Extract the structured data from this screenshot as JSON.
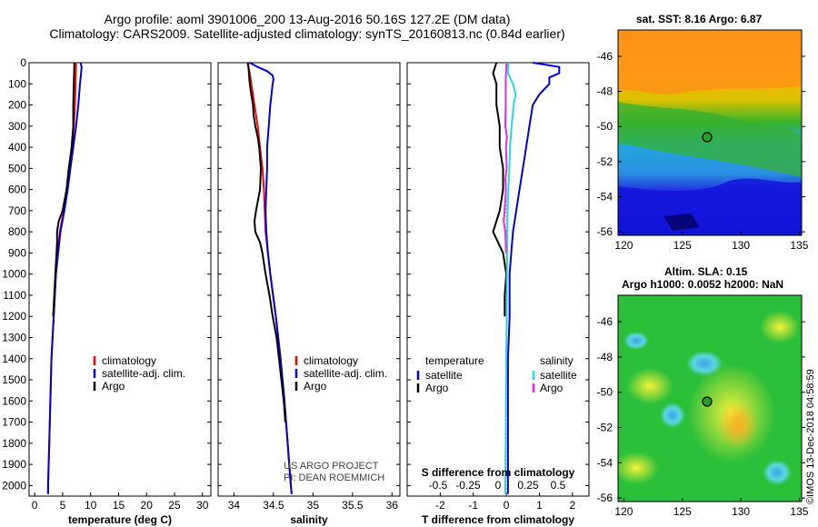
{
  "header": {
    "title_line1": "Argo profile: aoml 3901006_200 13-Aug-2016 50.16S 127.2E (DM data)",
    "title_line2": "Climatology: CARS2009. Satellite-adjusted climatology: synTS_20160813.nc (0.84d earlier)"
  },
  "map_sst": {
    "title": "sat. SST: 8.16 Argo: 6.87"
  },
  "map_sla": {
    "title_line1": "Altim. SLA: 0.15",
    "title_line2": "Argo h1000: 0.0052 h2000: NaN"
  },
  "credit": {
    "line1": "US ARGO PROJECT",
    "line2": "PI: DEAN ROEMMICH"
  },
  "stamp": "©IMOS 13-Dec-2018 04:58:59",
  "colors": {
    "climatology": "#ff0000",
    "satellite": "#0000dd",
    "argo": "#000000",
    "sat_salinity": "#22dddd",
    "argo_salinity_diff": "#ee22ee"
  },
  "chart_data": [
    {
      "type": "line",
      "xlabel": "temperature (deg C)",
      "ylim": [
        2050,
        0
      ],
      "yticks": [
        0,
        100,
        200,
        300,
        400,
        500,
        600,
        700,
        800,
        900,
        1000,
        1100,
        1200,
        1300,
        1400,
        1500,
        1600,
        1700,
        1800,
        1900,
        2000
      ],
      "xlim": [
        -1,
        31.5
      ],
      "xticks": [
        0,
        5,
        10,
        15,
        20,
        25,
        30
      ],
      "legend": [
        "climatology",
        "satellite-adj. clim.",
        "Argo"
      ],
      "series": [
        {
          "name": "climatology",
          "color": "#ff0000",
          "depth": [
            0,
            100,
            200,
            300,
            400,
            500,
            600,
            700,
            800,
            900,
            1000,
            1200,
            1400,
            1600,
            1800,
            2000,
            2040
          ],
          "values": [
            7.4,
            7.3,
            7.2,
            7.0,
            6.7,
            6.3,
            5.8,
            5.2,
            4.5,
            4.1,
            3.8,
            3.4,
            3.0,
            2.8,
            2.6,
            2.4,
            2.4
          ]
        },
        {
          "name": "satellite-adj. clim.",
          "color": "#0000dd",
          "depth": [
            0,
            20,
            50,
            100,
            200,
            300,
            400,
            500,
            600,
            700,
            800,
            900,
            1000,
            1200,
            1400,
            1600,
            1800,
            2000,
            2040
          ],
          "values": [
            8.2,
            8.4,
            8.3,
            8.1,
            7.8,
            7.4,
            6.9,
            6.4,
            5.9,
            5.3,
            4.6,
            4.2,
            3.8,
            3.4,
            3.0,
            2.8,
            2.6,
            2.4,
            2.4
          ]
        },
        {
          "name": "Argo",
          "color": "#000000",
          "depth": [
            0,
            100,
            200,
            300,
            400,
            500,
            600,
            700,
            750,
            800,
            850,
            900,
            1000,
            1100,
            1200
          ],
          "values": [
            7.1,
            7.0,
            6.9,
            6.9,
            6.6,
            6.1,
            5.7,
            5.0,
            4.3,
            4.0,
            4.0,
            3.9,
            3.7,
            3.5,
            3.3
          ]
        }
      ]
    },
    {
      "type": "line",
      "xlabel": "salinity",
      "ylim": [
        2050,
        0
      ],
      "xlim": [
        33.8,
        36.1
      ],
      "xticks": [
        34,
        34.5,
        35,
        35.5,
        36
      ],
      "xticklabels": [
        "34",
        "34.5",
        "35",
        "35.5",
        "36"
      ],
      "legend": [
        "climatology",
        "satellite-adj. clim.",
        "Argo"
      ],
      "series": [
        {
          "name": "climatology",
          "color": "#ff0000",
          "depth": [
            0,
            50,
            100,
            200,
            300,
            400,
            500,
            600,
            700,
            800,
            900,
            1000,
            1200,
            1400,
            1600,
            1800,
            2000,
            2040
          ],
          "values": [
            34.17,
            34.2,
            34.22,
            34.26,
            34.3,
            34.33,
            34.36,
            34.38,
            34.39,
            34.4,
            34.43,
            34.46,
            34.53,
            34.59,
            34.64,
            34.68,
            34.72,
            34.73
          ]
        },
        {
          "name": "satellite-adj. clim.",
          "color": "#0000dd",
          "depth": [
            0,
            20,
            40,
            60,
            80,
            100,
            200,
            300,
            400,
            500,
            600,
            700,
            800,
            900,
            1000,
            1200,
            1400,
            1600,
            1800,
            2000,
            2040
          ],
          "values": [
            34.2,
            34.3,
            34.42,
            34.49,
            34.5,
            34.49,
            34.46,
            34.44,
            34.42,
            34.42,
            34.41,
            34.4,
            34.41,
            34.43,
            34.46,
            34.53,
            34.59,
            34.64,
            34.68,
            34.72,
            34.73
          ]
        },
        {
          "name": "Argo",
          "color": "#000000",
          "depth": [
            0,
            50,
            100,
            150,
            200,
            250,
            300,
            350,
            400,
            500,
            600,
            700,
            750,
            800,
            850,
            900,
            1000,
            1100,
            1200,
            1300,
            1400,
            1500,
            1600,
            1700
          ],
          "values": [
            34.18,
            34.19,
            34.2,
            34.22,
            34.24,
            34.25,
            34.27,
            34.3,
            34.32,
            34.34,
            34.33,
            34.28,
            34.26,
            34.27,
            34.33,
            34.36,
            34.4,
            34.45,
            34.49,
            34.54,
            34.57,
            34.6,
            34.63,
            34.65
          ]
        }
      ]
    },
    {
      "type": "line",
      "xlabel": "T difference from climatology",
      "ylim": [
        2050,
        0
      ],
      "xlim": [
        -3,
        2.5
      ],
      "xticks": [
        -2,
        -1,
        0,
        1,
        2
      ],
      "secondary_xlabel": "S difference from climatology",
      "secondary_xticks": [
        "-0.5",
        "-0.25",
        "0",
        "0.25",
        "0.5"
      ],
      "legend_left_title": "temperature",
      "legend_left": [
        "satellite",
        "Argo"
      ],
      "legend_right_title": "salinity",
      "legend_right": [
        "satellite",
        "Argo"
      ],
      "series": [
        {
          "name": "temperature satellite",
          "color": "#0000dd",
          "depth": [
            0,
            20,
            50,
            70,
            100,
            150,
            200,
            300,
            400,
            500,
            600,
            700,
            800,
            900,
            1000,
            1200,
            1400,
            1600,
            1800,
            2000,
            2040
          ],
          "values": [
            0.8,
            1.6,
            1.6,
            1.3,
            1.3,
            1.0,
            0.8,
            0.7,
            0.6,
            0.5,
            0.4,
            0.3,
            0.2,
            0.15,
            0.1,
            0.1,
            0.05,
            0.05,
            0.05,
            0.05,
            0.05
          ]
        },
        {
          "name": "temperature Argo",
          "color": "#000000",
          "depth": [
            0,
            50,
            100,
            200,
            300,
            400,
            500,
            600,
            700,
            800,
            900,
            1000,
            1100,
            1200
          ],
          "values": [
            -0.3,
            -0.4,
            -0.3,
            -0.3,
            -0.2,
            -0.2,
            -0.1,
            -0.1,
            -0.2,
            -0.4,
            -0.1,
            0,
            -0.05,
            -0.05
          ]
        },
        {
          "name": "salinity satellite",
          "color": "#22dddd",
          "depth": [
            0,
            50,
            100,
            150,
            200,
            300,
            400,
            500,
            600,
            700,
            800,
            1000,
            1200,
            1400,
            1600,
            1800,
            2000,
            2040
          ],
          "values": [
            0.07,
            0.05,
            0.2,
            0.28,
            0.22,
            0.16,
            0.11,
            0.09,
            0.06,
            0.04,
            0.03,
            0.02,
            0.01,
            0.0,
            -0.01,
            -0.02,
            -0.03,
            -0.03
          ]
        },
        {
          "name": "salinity Argo",
          "color": "#ee22ee",
          "depth": [
            0,
            50,
            100,
            200,
            300,
            350,
            400,
            500,
            550,
            600,
            700,
            750,
            800,
            850,
            900
          ],
          "values": [
            0.01,
            -0.01,
            -0.02,
            -0.02,
            -0.03,
            0.02,
            -0.01,
            0.01,
            -0.03,
            -0.01,
            -0.05,
            -0.08,
            -0.03,
            -0.02,
            -0.01
          ]
        }
      ]
    },
    {
      "type": "heatmap",
      "title": "sat. SST: 8.16 Argo: 6.87",
      "xlim": [
        119.5,
        135.2
      ],
      "ylim": [
        -56.2,
        -44.5
      ],
      "xticks": [
        120,
        125,
        130,
        135
      ],
      "yticks": [
        -46,
        -48,
        -50,
        -52,
        -54,
        -56
      ],
      "argo_position": [
        127.2,
        -50.16
      ]
    },
    {
      "type": "heatmap",
      "title": "Altim. SLA: 0.15  Argo h1000: 0.0052 h2000: NaN",
      "xlim": [
        119.5,
        135.2
      ],
      "ylim": [
        -56.2,
        -44.5
      ],
      "xticks": [
        120,
        125,
        130,
        135
      ],
      "yticks": [
        -46,
        -48,
        -50,
        -52,
        -54,
        -56
      ],
      "argo_position": [
        127.2,
        -50.16
      ]
    }
  ]
}
